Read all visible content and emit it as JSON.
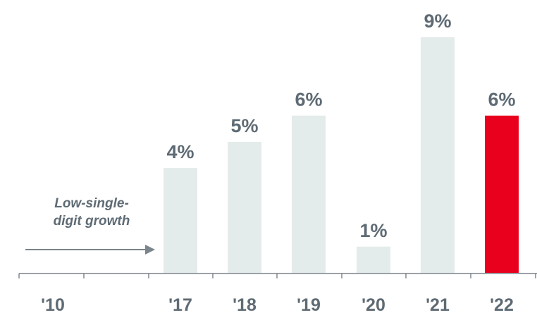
{
  "chart_data": {
    "type": "bar",
    "title": "",
    "xlabel": "",
    "ylabel": "",
    "categories": [
      "'10",
      "'17",
      "'18",
      "'19",
      "'20",
      "'21",
      "'22"
    ],
    "values": [
      null,
      4,
      5,
      6,
      1,
      9,
      6
    ],
    "data_labels": [
      "",
      "4%",
      "5%",
      "6%",
      "1%",
      "9%",
      "6%"
    ],
    "ylim": [
      0,
      9.4
    ],
    "grid": false,
    "legend": "none",
    "highlight_category": "'22",
    "annotation": {
      "line1": "Low-single-",
      "line2": "digit growth"
    }
  },
  "colors": {
    "bar": "#e4eceb",
    "highlight": "#e8001c",
    "text": "#5f6b74",
    "axis": "#5f6b74"
  }
}
